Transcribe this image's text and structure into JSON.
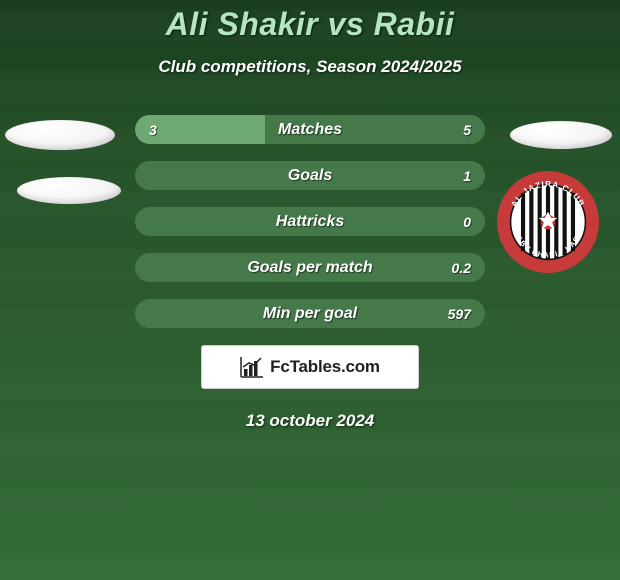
{
  "title": "Ali Shakir vs Rabii",
  "subtitle": "Club competitions, Season 2024/2025",
  "date": "13 october 2024",
  "brand": "FcTables.com",
  "colors": {
    "title": "#b4e6c2",
    "text": "#ffffff",
    "bar_track": "#45794a",
    "bar_fill": "#6ea873",
    "bg_top": "#1a3d1f",
    "bg_bottom": "#336c37"
  },
  "club_badge": {
    "name": "Al Jazira Club",
    "outer_ring": "#c63a3a",
    "ring_text_color": "#ffffff",
    "inner_bg": "#ffffff",
    "stripe": "#111111"
  },
  "rows": [
    {
      "label": "Matches",
      "left": "3",
      "right": "5",
      "fill_pct": 37
    },
    {
      "label": "Goals",
      "left": "",
      "right": "1",
      "fill_pct": 0
    },
    {
      "label": "Hattricks",
      "left": "",
      "right": "0",
      "fill_pct": 0
    },
    {
      "label": "Goals per match",
      "left": "",
      "right": "0.2",
      "fill_pct": 0
    },
    {
      "label": "Min per goal",
      "left": "",
      "right": "597",
      "fill_pct": 0
    }
  ],
  "fontsize": {
    "title": 32,
    "subtitle": 17,
    "row_label": 16,
    "row_value": 14,
    "brand": 17,
    "date": 17
  }
}
